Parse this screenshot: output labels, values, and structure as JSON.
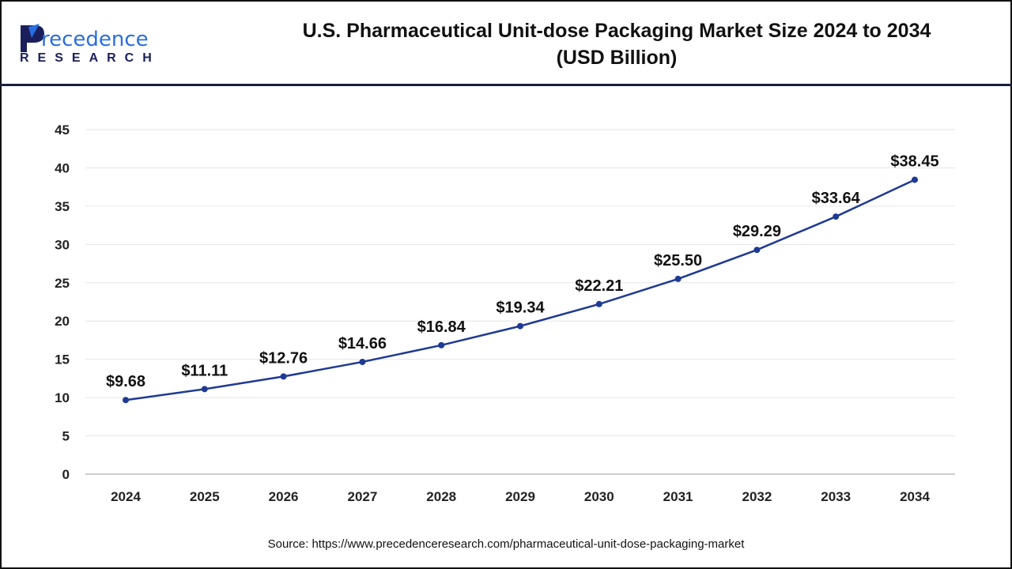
{
  "logo": {
    "text": "Precedence",
    "subtext": "RESEARCH"
  },
  "title": {
    "line1": "U.S. Pharmaceutical Unit-dose Packaging Market Size 2024 to 2034",
    "line2": "(USD Billion)"
  },
  "source": "Source: https://www.precedenceresearch.com/pharmaceutical-unit-dose-packaging-market",
  "chart_data": {
    "type": "line",
    "title": "U.S. Pharmaceutical Unit-dose Packaging Market Size 2024 to 2034 (USD Billion)",
    "categories": [
      "2024",
      "2025",
      "2026",
      "2027",
      "2028",
      "2029",
      "2030",
      "2031",
      "2032",
      "2033",
      "2034"
    ],
    "values": [
      9.68,
      11.11,
      12.76,
      14.66,
      16.84,
      19.34,
      22.21,
      25.5,
      29.29,
      33.64,
      38.45
    ],
    "labels": [
      "$9.68",
      "$11.11",
      "$12.76",
      "$14.66",
      "$16.84",
      "$19.34",
      "$22.21",
      "$25.50",
      "$29.29",
      "$33.64",
      "$38.45"
    ],
    "ylim": [
      0,
      45
    ],
    "yticks": [
      0,
      5,
      10,
      15,
      20,
      25,
      30,
      35,
      40,
      45
    ],
    "grid": true,
    "line_color": "#1f3a93",
    "xlabel": "",
    "ylabel": ""
  }
}
